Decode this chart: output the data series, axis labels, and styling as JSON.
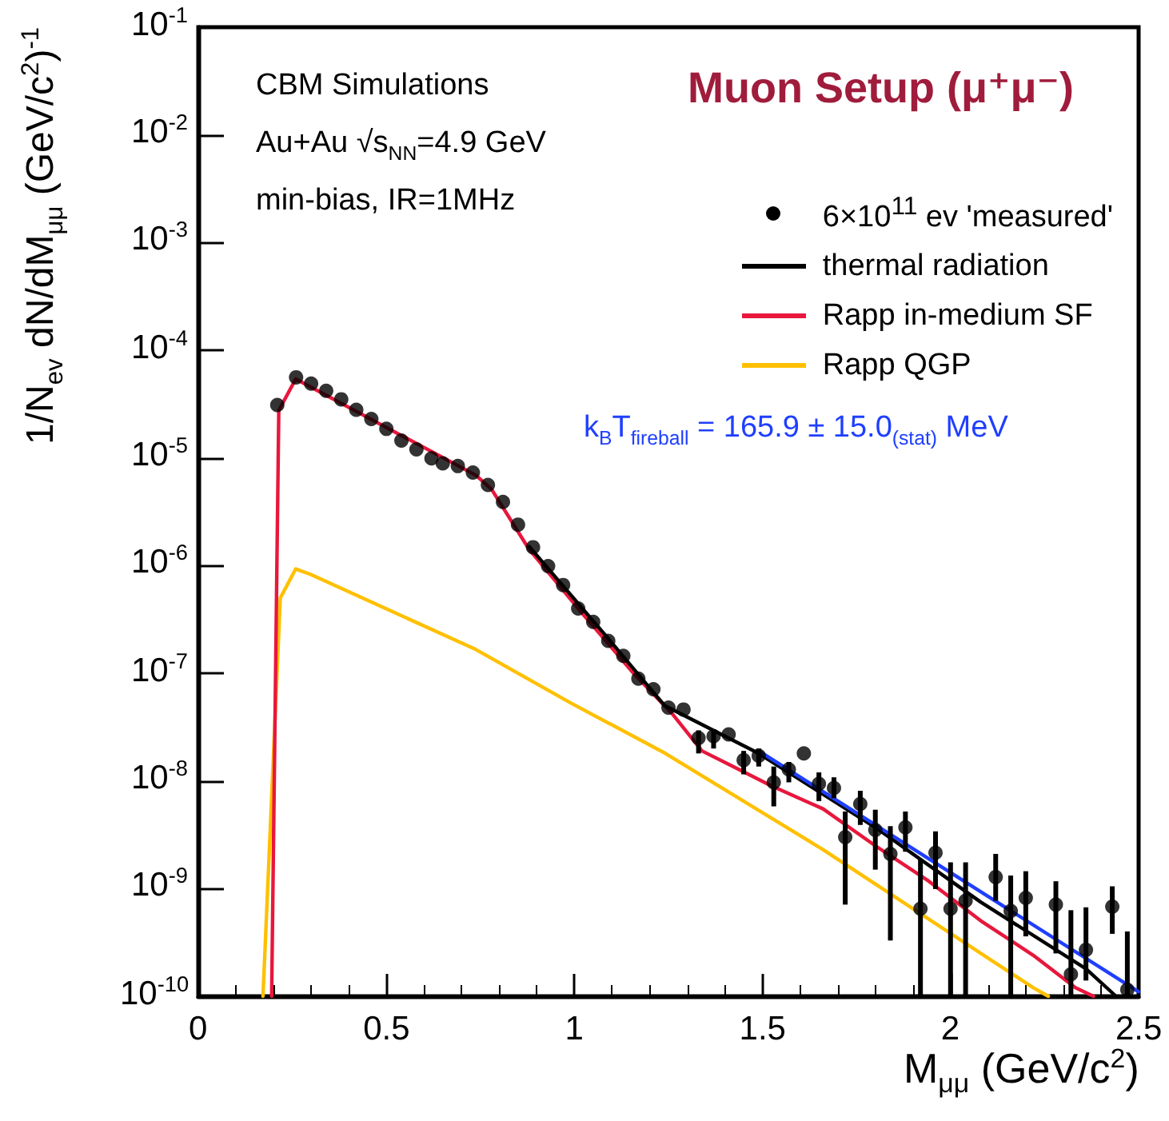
{
  "chart_data": {
    "type": "line",
    "title": "Muon Setup (μ⁺μ⁻)",
    "xlabel": "M$_{μμ}$ (GeV/c$^{2}$)",
    "ylabel": "1/N$_{ev}$ dN/dM$_{μμ}$ (GeV/c$^{2}$)$^{-1}$",
    "annotations": [
      "CBM Simulations",
      "Au+Au √s$_{NN}$=4.9 GeV",
      "min-bias, IR=1MHz",
      "k$_{B}$T$_{fireball}$ = 165.9 ± 15.0$_{(stat)}$ MeV"
    ],
    "log": "y",
    "grid": false,
    "legend": "top right",
    "xlim": [
      0,
      2.5
    ],
    "xticks": [
      0,
      0.5,
      1,
      1.5,
      2,
      2.5
    ],
    "ylim": [
      1e-10,
      0.1
    ],
    "yticks": [
      {
        "value": 1e-10,
        "label": "10$^{-10}$"
      },
      {
        "value": 1e-09,
        "label": "10$^{-9}$"
      },
      {
        "value": 1e-08,
        "label": "10$^{-8}$"
      },
      {
        "value": 1e-07,
        "label": "10$^{-7}$"
      },
      {
        "value": 1e-06,
        "label": "10$^{-6}$"
      },
      {
        "value": 1e-05,
        "label": "10$^{-5}$"
      },
      {
        "value": 0.0001,
        "label": "10$^{-4}$"
      },
      {
        "value": 0.001,
        "label": "10$^{-3}$"
      },
      {
        "value": 0.01,
        "label": "10$^{-2}$"
      },
      {
        "value": 0.1,
        "label": "10$^{-1}$"
      }
    ],
    "series": [
      {
        "name": "Rapp QGP",
        "type": "line",
        "marker": "none",
        "color": "#ffc000",
        "x": [
          0.172,
          0.218,
          0.259,
          0.298,
          0.738,
          0.99,
          1.242,
          1.661,
          2.22,
          2.26
        ],
        "values": [
          1e-10,
          5e-07,
          9.3e-07,
          8.3e-07,
          1.66e-07,
          5.3e-08,
          1.8e-08,
          2.3e-09,
          1.2e-10,
          1e-10
        ]
      },
      {
        "name": "Rapp in-medium SF",
        "type": "line",
        "marker": "none",
        "color": "#e8173c",
        "x": [
          0.195,
          0.214,
          0.259,
          0.738,
          0.78,
          0.878,
          1.018,
          1.158,
          1.26,
          1.339,
          1.437,
          1.521,
          1.661,
          1.8,
          1.941,
          2.081,
          2.22,
          2.332,
          2.38
        ],
        "values": [
          1e-10,
          2.76e-05,
          5.4e-05,
          6.9e-06,
          5.1e-06,
          1.44e-06,
          3.7e-07,
          9.9e-08,
          4.2e-08,
          1.9e-08,
          1.28e-08,
          9.1e-09,
          5.5e-09,
          2.5e-09,
          1.18e-09,
          5e-10,
          2.4e-10,
          1.2e-10,
          1e-10
        ]
      },
      {
        "name": "thermal radiation",
        "type": "line",
        "marker": "none",
        "color": "#000000",
        "x": [
          0.88,
          1.09,
          1.2,
          1.24,
          1.49,
          1.8,
          2.08,
          2.36,
          2.44
        ],
        "values": [
          1.5e-06,
          2.1e-07,
          7.3e-08,
          5e-08,
          1.8e-08,
          3.7e-09,
          7.5e-10,
          1.8e-10,
          1e-10
        ]
      },
      {
        "type": "line",
        "marker": "none",
        "color": "#1f3fff",
        "x": [
          1.49,
          2.5
        ],
        "values": [
          1.9e-08,
          1.1e-10
        ]
      },
      {
        "name": "6×10$^{11}$ ev 'measured'",
        "type": "scatter",
        "marker": "circle",
        "color": "#000000",
        "x": [
          0.21,
          0.26,
          0.3,
          0.34,
          0.38,
          0.42,
          0.46,
          0.5,
          0.54,
          0.58,
          0.62,
          0.65,
          0.69,
          0.73,
          0.77,
          0.81,
          0.85,
          0.89,
          0.93,
          0.97,
          1.01,
          1.05,
          1.09,
          1.13,
          1.17,
          1.21,
          1.25,
          1.29,
          1.33,
          1.37,
          1.41,
          1.45,
          1.49,
          1.53,
          1.57,
          1.61,
          1.65,
          1.69,
          1.72,
          1.76,
          1.8,
          1.84,
          1.88,
          1.92,
          1.96,
          2.0,
          2.04,
          2.12,
          2.16,
          2.2,
          2.28,
          2.32,
          2.36,
          2.43,
          2.47
        ],
        "values": [
          3.1e-05,
          5.6e-05,
          4.9e-05,
          4.2e-05,
          3.5e-05,
          2.8e-05,
          2.3e-05,
          1.86e-05,
          1.45e-05,
          1.2e-05,
          9.9e-06,
          8.9e-06,
          8.4e-06,
          7.3e-06,
          5.6e-06,
          3.9e-06,
          2.4e-06,
          1.48e-06,
          9.9e-07,
          6.6e-07,
          4e-07,
          3e-07,
          2e-07,
          1.45e-07,
          8.9e-08,
          7.1e-08,
          4.8e-08,
          4.6e-08,
          2.5e-08,
          2.6e-08,
          2.7e-08,
          1.56e-08,
          1.71e-08,
          9.7e-09,
          1.28e-08,
          1.8e-08,
          9.4e-09,
          8.6e-09,
          3e-09,
          6.1e-09,
          3.5e-09,
          2.1e-09,
          3.7e-09,
          6.5e-10,
          2.15e-09,
          6.5e-10,
          7.7e-10,
          1.28e-09,
          6.2e-10,
          8.2e-10,
          7.1e-10,
          1.6e-10,
          2.7e-10,
          6.8e-10,
          1.15e-10
        ],
        "errors": [
          null,
          null,
          null,
          null,
          null,
          null,
          null,
          null,
          null,
          null,
          null,
          null,
          null,
          null,
          null,
          null,
          null,
          null,
          null,
          null,
          null,
          null,
          null,
          null,
          null,
          null,
          null,
          null,
          [
            1.8e-08,
            2.95e-08
          ],
          [
            2e-08,
            3e-08
          ],
          null,
          [
            1.15e-08,
            1.9e-08
          ],
          [
            1.36e-08,
            2e-08
          ],
          [
            5.8e-09,
            1.36e-08
          ],
          [
            9.7e-09,
            1.5e-08
          ],
          null,
          [
            6.5e-09,
            1.2e-08
          ],
          [
            6.9e-09,
            1.08e-08
          ],
          [
            7.1e-10,
            5.2e-09
          ],
          [
            3.9e-09,
            8.1e-09
          ],
          [
            1.5e-09,
            5.4e-09
          ],
          [
            3.3e-10,
            3.8e-09
          ],
          [
            2.2e-09,
            5.2e-09
          ],
          [
            1e-10,
            1.86e-09
          ],
          [
            9.9e-10,
            3.4e-09
          ],
          [
            1e-10,
            1.75e-09
          ],
          [
            1e-10,
            1.75e-09
          ],
          [
            7.7e-10,
            2.1e-09
          ],
          [
            1e-10,
            1.32e-09
          ],
          [
            3.6e-10,
            1.45e-09
          ],
          [
            2.5e-10,
            1.17e-09
          ],
          [
            1e-10,
            6.3e-10
          ],
          [
            1.4e-10,
            6.7e-10
          ],
          [
            3.8e-10,
            1.05e-09
          ],
          [
            1e-10,
            4e-10
          ]
        ]
      }
    ]
  }
}
